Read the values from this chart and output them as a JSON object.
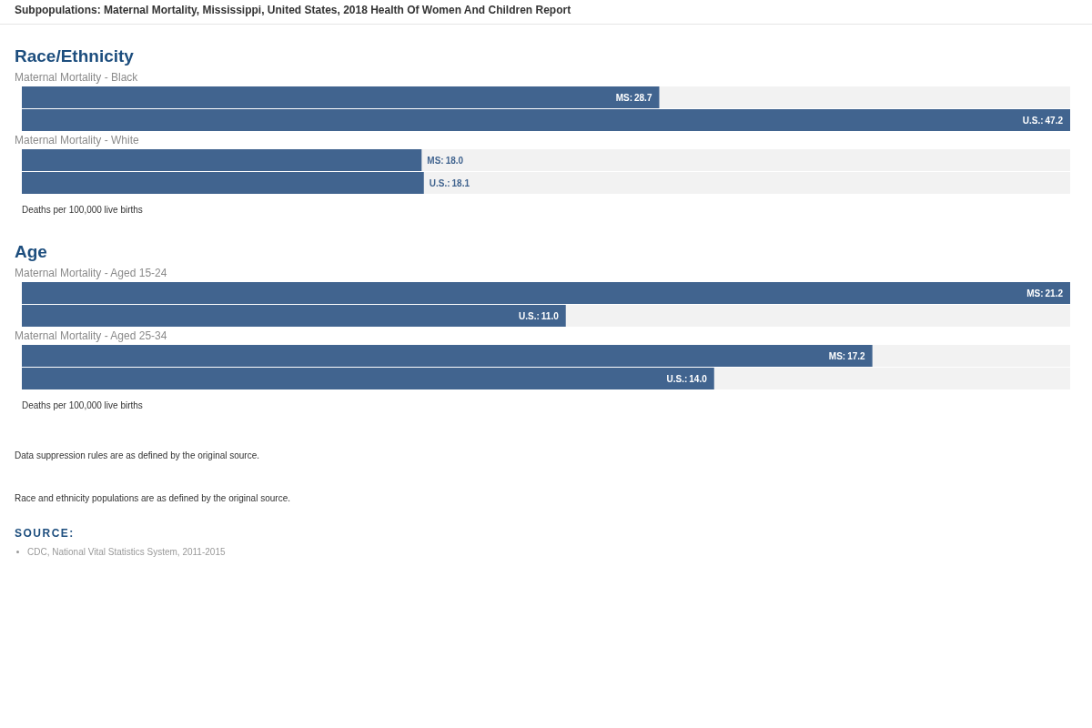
{
  "chart_data": [
    {
      "type": "bar",
      "orientation": "horizontal",
      "title": "Race/Ethnicity",
      "categories": [
        "Maternal Mortality - Black",
        "Maternal Mortality - White"
      ],
      "series": [
        {
          "name": "MS:",
          "color": "#41648f",
          "values": [
            28.7,
            18.0
          ],
          "value_labels": [
            "28.7",
            "18.0"
          ]
        },
        {
          "name": "U.S.:",
          "color": "#41648f",
          "values": [
            47.2,
            18.1
          ],
          "value_labels": [
            "47.2",
            "18.1"
          ]
        }
      ],
      "xlabel": "Deaths per 100,000 live births",
      "tick_labels": "y",
      "grid": false,
      "legend": false,
      "annotations": [
        "Subpopulations: Maternal Mortality, Mississippi, United States, 2018 Health Of Women And Children Report"
      ]
    },
    {
      "type": "bar",
      "orientation": "horizontal",
      "title": "Age",
      "categories": [
        "Maternal Mortality - Aged 15-24",
        "Maternal Mortality - Aged 25-34"
      ],
      "series": [
        {
          "name": "MS:",
          "color": "#41648f",
          "values": [
            21.2,
            17.2
          ],
          "value_labels": [
            "21.2",
            "17.2"
          ]
        },
        {
          "name": "U.S.:",
          "color": "#41648f",
          "values": [
            11.0,
            14.0
          ],
          "value_labels": [
            "11.0",
            "14.0"
          ]
        }
      ],
      "xlabel": "Deaths per 100,000 live births",
      "tick_labels": "y",
      "grid": false,
      "legend": false,
      "annotations": [
        "Data suppression rules are as defined by the original source.",
        "Race and ethnicity populations are as defined by the original source.",
        "SOURCE:",
        "CDC, National Vital Statistics System, 2011-2015"
      ]
    }
  ]
}
